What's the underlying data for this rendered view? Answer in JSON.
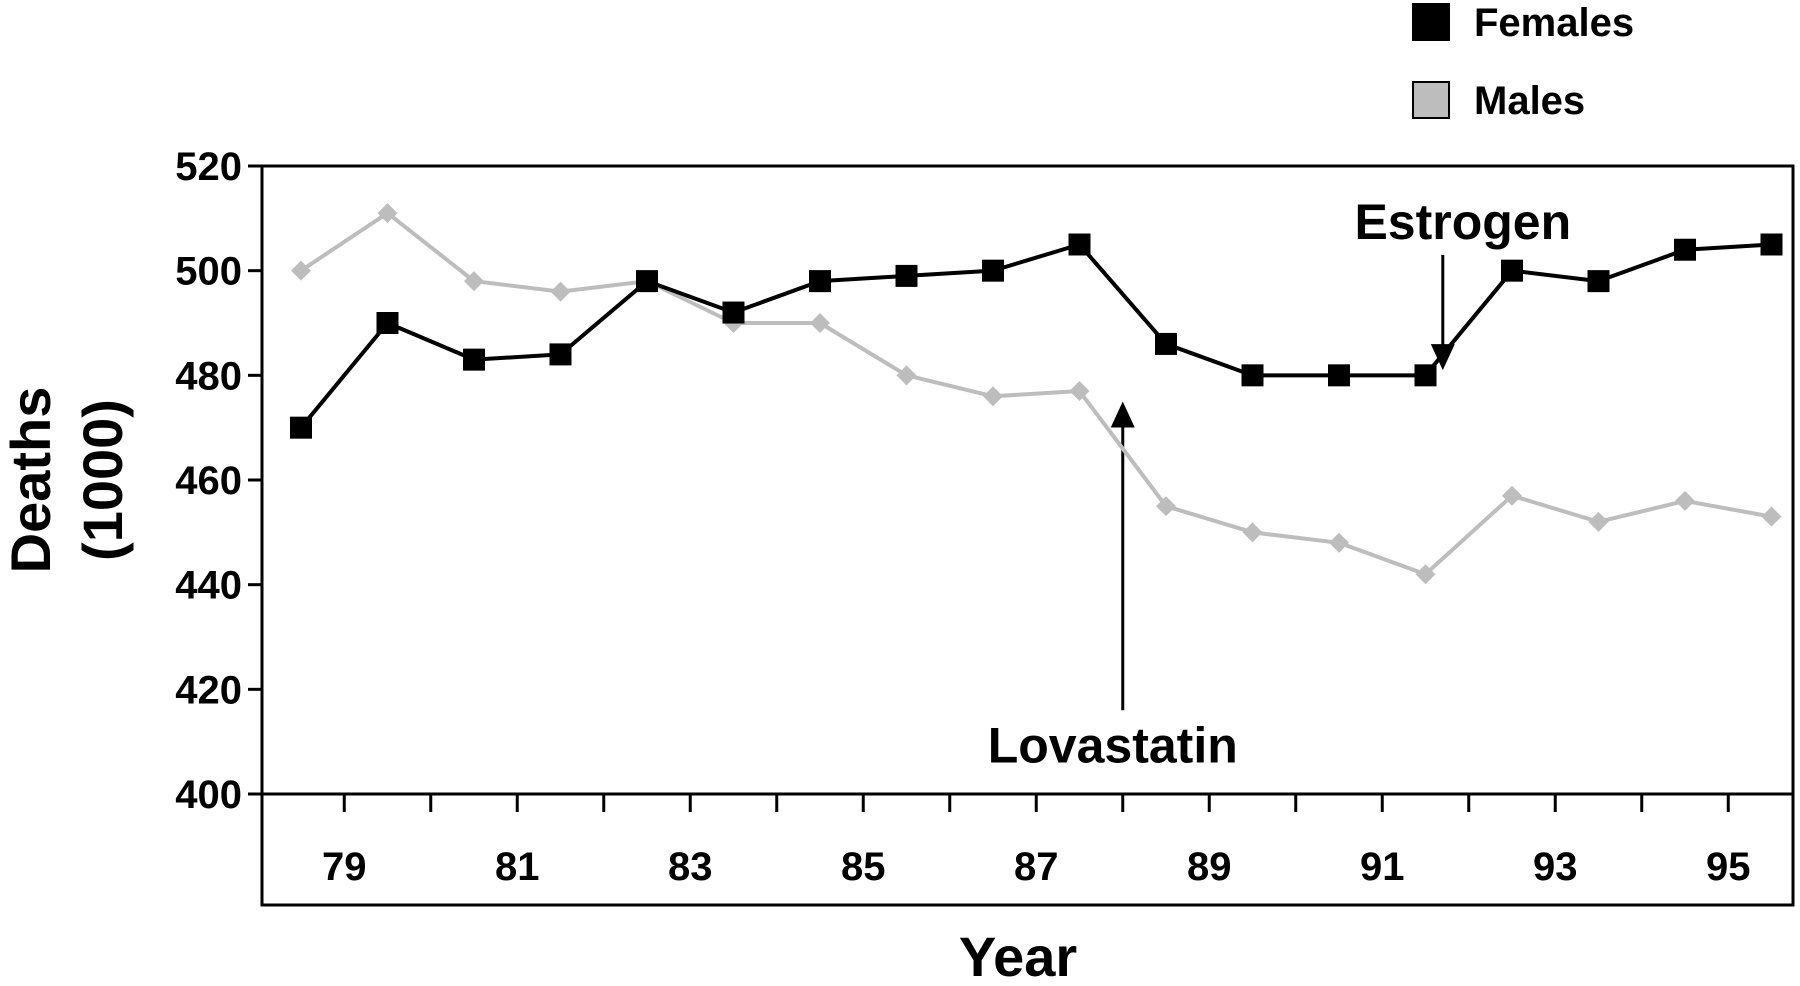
{
  "chart_data": {
    "type": "line",
    "title": "",
    "xlabel": "Year",
    "ylabel_line1": "Deaths",
    "ylabel_line2": "(1000)",
    "ylim": [
      400,
      520
    ],
    "yticks": [
      400,
      420,
      440,
      460,
      480,
      500,
      520
    ],
    "x": [
      78,
      79,
      80,
      81,
      82,
      83,
      84,
      85,
      86,
      87,
      88,
      89,
      90,
      91,
      92,
      93,
      94,
      95
    ],
    "xtick_labels": [
      "79",
      "81",
      "83",
      "85",
      "87",
      "89",
      "91",
      "93",
      "95"
    ],
    "xtick_label_values": [
      79,
      81,
      83,
      85,
      87,
      89,
      91,
      93,
      95
    ],
    "grid": false,
    "legend_placement": "top-right",
    "series": [
      {
        "name": "Females",
        "color": "#000000",
        "marker": "square",
        "values": [
          470,
          490,
          483,
          484,
          498,
          492,
          498,
          499,
          500,
          505,
          486,
          480,
          480,
          480,
          500,
          498,
          504,
          505
        ]
      },
      {
        "name": "Males",
        "color": "#bdbdbd",
        "marker": "diamond",
        "values": [
          500,
          511,
          498,
          496,
          498,
          490,
          490,
          480,
          476,
          477,
          455,
          450,
          448,
          442,
          457,
          452,
          456,
          453
        ]
      }
    ],
    "annotations": [
      {
        "text": "Estrogen",
        "year": 91.2,
        "arrow_from_value": 503,
        "arrow_to_value": 481,
        "direction": "down"
      },
      {
        "text": "Lovastatin",
        "year": 87.5,
        "arrow_from_value": 416,
        "arrow_to_value": 475,
        "direction": "up"
      }
    ]
  }
}
